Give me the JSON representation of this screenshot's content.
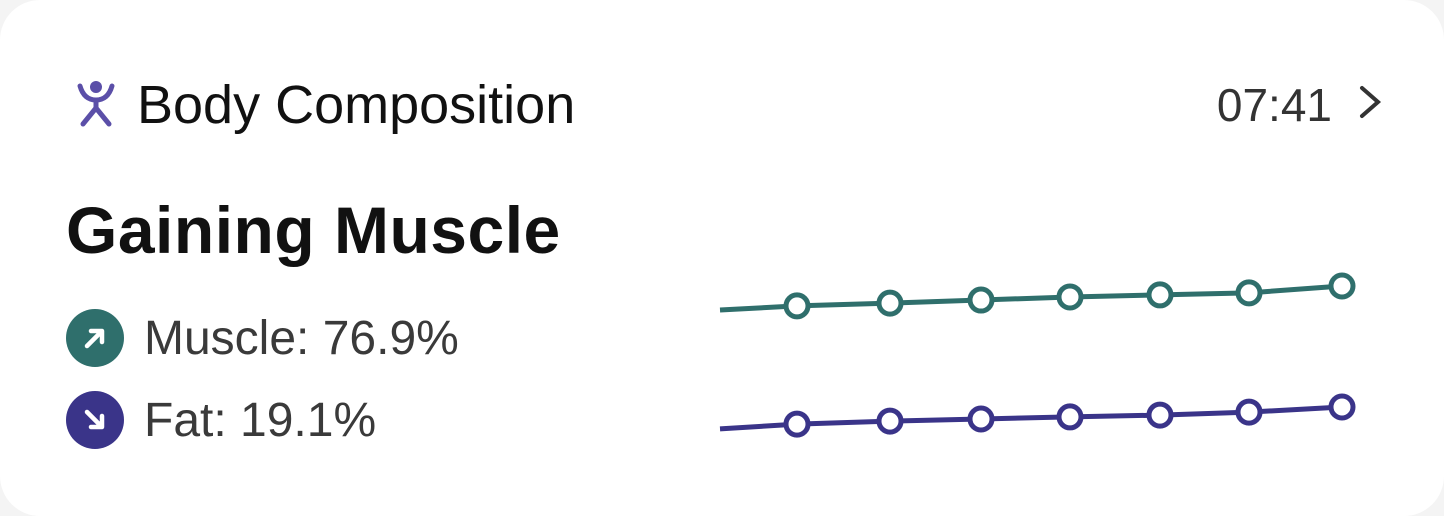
{
  "header": {
    "title": "Body Composition",
    "time": "07:41",
    "icon": "person-icon",
    "chevron": "chevron-right-icon"
  },
  "headline": "Gaining Muscle",
  "stats": [
    {
      "label": "Muscle: 76.9%",
      "trend": "up",
      "icon": "arrow-up-right-icon",
      "color": "#2f6f6c"
    },
    {
      "label": "Fat: 19.1%",
      "trend": "down",
      "icon": "arrow-down-right-icon",
      "color": "#3a3489"
    }
  ],
  "colors": {
    "accent": "#5b4fa8",
    "muscle": "#2f6f6c",
    "fat": "#3a3489"
  },
  "chart_data": {
    "type": "line",
    "grid": false,
    "series": [
      {
        "key": "muscle",
        "color": "#2f6f6c",
        "values": [
          76.2,
          76.32,
          76.4,
          76.49,
          76.58,
          76.64,
          76.7,
          76.9
        ]
      },
      {
        "key": "fat",
        "color": "#3a3489",
        "values": [
          19.83,
          19.67,
          19.57,
          19.5,
          19.43,
          19.37,
          19.27,
          19.1
        ]
      }
    ]
  }
}
